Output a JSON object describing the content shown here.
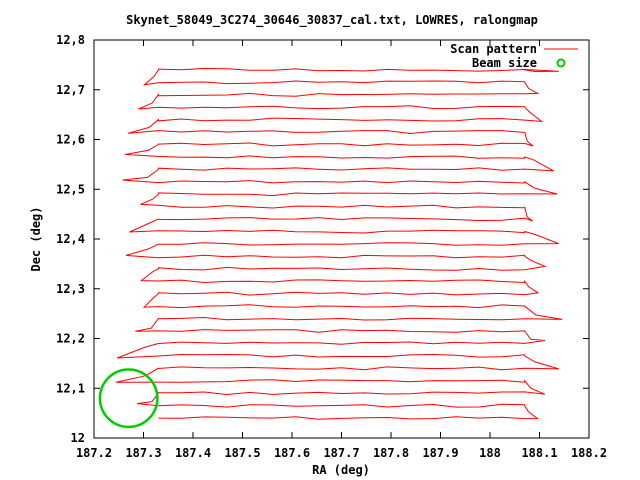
{
  "chart_data": {
    "type": "line",
    "title": "Skynet_58049_3C274_30646_30837_cal.txt, LOWRES, ralongmap",
    "xlabel": "RA (deg)",
    "ylabel": "Dec (deg)",
    "xlim": [
      187.2,
      188.2
    ],
    "ylim": [
      12.0,
      12.8
    ],
    "xticks": [
      187.2,
      187.3,
      187.4,
      187.5,
      187.6,
      187.7,
      187.8,
      187.9,
      188.0,
      188.1,
      188.2
    ],
    "xtick_labels": [
      "187.2",
      "187.3",
      "187.4",
      "187.5",
      "187.6",
      "187.7",
      "187.8",
      "187.9",
      "188",
      "188.1",
      "188.2"
    ],
    "yticks": [
      12.0,
      12.1,
      12.2,
      12.3,
      12.4,
      12.5,
      12.6,
      12.7,
      12.8
    ],
    "ytick_labels": [
      "12",
      "12,1",
      "12,2",
      "12,3",
      "12,4",
      "12,5",
      "12,6",
      "12,7",
      "12,8"
    ],
    "grid": false,
    "legend_position": "top-right",
    "series": [
      {
        "name": "Scan pattern",
        "color": "#ff0000",
        "type": "raster-scan",
        "ra_range": [
          187.33,
          188.07
        ],
        "dec_rows": [
          12.04,
          12.065,
          12.09,
          12.115,
          12.14,
          12.165,
          12.19,
          12.215,
          12.24,
          12.265,
          12.29,
          12.315,
          12.34,
          12.365,
          12.39,
          12.415,
          12.44,
          12.465,
          12.49,
          12.515,
          12.54,
          12.565,
          12.59,
          12.615,
          12.64,
          12.665,
          12.69,
          12.715,
          12.74
        ]
      },
      {
        "name": "Beam size",
        "color": "#00cc00",
        "type": "circle",
        "center": [
          187.27,
          12.08
        ],
        "radius_deg": 0.058
      }
    ]
  }
}
